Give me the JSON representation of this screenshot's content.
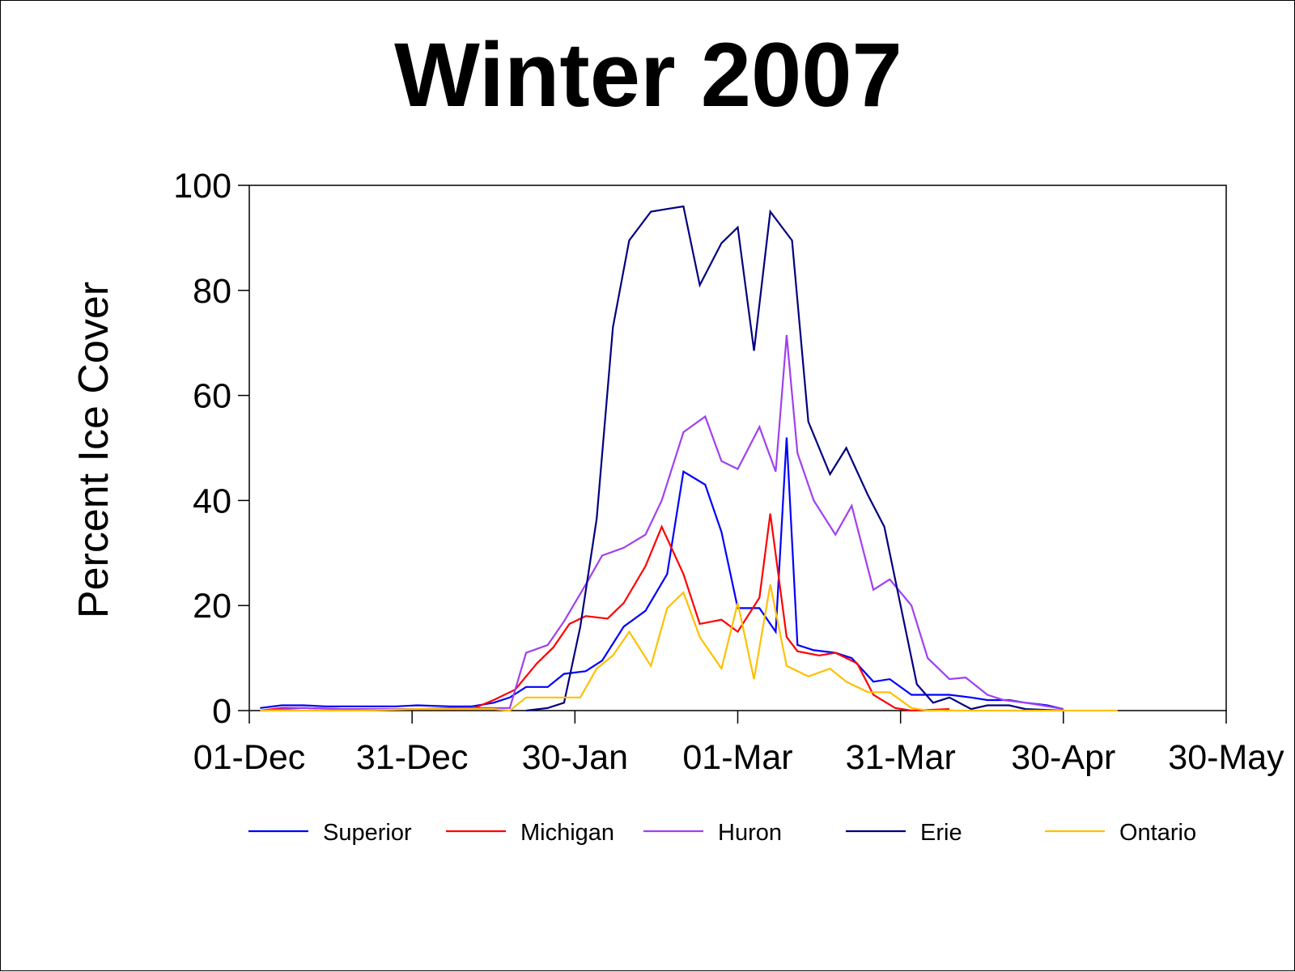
{
  "chart_data": {
    "type": "line",
    "title": "Winter 2007",
    "ylabel": "Percent Ice Cover",
    "xlabel": "",
    "x_tick_labels": [
      "01-Dec",
      "31-Dec",
      "30-Jan",
      "01-Mar",
      "31-Mar",
      "30-Apr",
      "30-May"
    ],
    "x_tick_dates": [
      "2006-12-01",
      "2006-12-31",
      "2007-01-30",
      "2007-03-01",
      "2007-03-31",
      "2007-04-30",
      "2007-05-30"
    ],
    "y_tick_labels": [
      "0",
      "20",
      "40",
      "60",
      "80",
      "100"
    ],
    "y_ticks": [
      0,
      20,
      40,
      60,
      80,
      100
    ],
    "xlim": [
      "2006-12-01",
      "2007-05-30"
    ],
    "ylim": [
      0,
      100
    ],
    "grid": false,
    "legend_position": "bottom",
    "series": [
      {
        "name": "Superior",
        "color": "#0000FF",
        "points": [
          [
            "2006-12-03",
            0.5
          ],
          [
            "2006-12-07",
            1
          ],
          [
            "2006-12-11",
            1
          ],
          [
            "2006-12-15",
            0.8
          ],
          [
            "2006-12-21",
            0.8
          ],
          [
            "2006-12-28",
            0.8
          ],
          [
            "2007-01-01",
            1
          ],
          [
            "2007-01-07",
            0.8
          ],
          [
            "2007-01-11",
            0.8
          ],
          [
            "2007-01-15",
            1.5
          ],
          [
            "2007-01-18",
            2.5
          ],
          [
            "2007-01-21",
            4.5
          ],
          [
            "2007-01-25",
            4.5
          ],
          [
            "2007-01-28",
            7
          ],
          [
            "2007-02-01",
            7.5
          ],
          [
            "2007-02-04",
            9.5
          ],
          [
            "2007-02-08",
            16
          ],
          [
            "2007-02-12",
            19
          ],
          [
            "2007-02-16",
            26
          ],
          [
            "2007-02-19",
            45.5
          ],
          [
            "2007-02-23",
            43
          ],
          [
            "2007-02-26",
            34
          ],
          [
            "2007-03-01",
            19.5
          ],
          [
            "2007-03-05",
            19.5
          ],
          [
            "2007-03-08",
            15
          ],
          [
            "2007-03-10",
            52
          ],
          [
            "2007-03-12",
            12.5
          ],
          [
            "2007-03-15",
            11.5
          ],
          [
            "2007-03-19",
            11
          ],
          [
            "2007-03-22",
            10
          ],
          [
            "2007-03-26",
            5.5
          ],
          [
            "2007-03-29",
            6
          ],
          [
            "2007-04-02",
            3
          ],
          [
            "2007-04-09",
            3
          ],
          [
            "2007-04-13",
            2.5
          ],
          [
            "2007-04-16",
            2
          ],
          [
            "2007-04-20",
            2
          ],
          [
            "2007-04-23",
            1.5
          ],
          [
            "2007-04-27",
            1
          ],
          [
            "2007-04-30",
            0.3
          ]
        ]
      },
      {
        "name": "Michigan",
        "color": "#FF0000",
        "points": [
          [
            "2006-12-03",
            0
          ],
          [
            "2006-12-07",
            0.5
          ],
          [
            "2006-12-11",
            0.5
          ],
          [
            "2006-12-18",
            0.3
          ],
          [
            "2006-12-25",
            0.3
          ],
          [
            "2007-01-01",
            0.3
          ],
          [
            "2007-01-08",
            0.3
          ],
          [
            "2007-01-11",
            0.3
          ],
          [
            "2007-01-15",
            2
          ],
          [
            "2007-01-19",
            4
          ],
          [
            "2007-01-23",
            9
          ],
          [
            "2007-01-26",
            12
          ],
          [
            "2007-01-29",
            16.5
          ],
          [
            "2007-02-01",
            18
          ],
          [
            "2007-02-05",
            17.5
          ],
          [
            "2007-02-08",
            20.5
          ],
          [
            "2007-02-12",
            27.5
          ],
          [
            "2007-02-15",
            35
          ],
          [
            "2007-02-19",
            26
          ],
          [
            "2007-02-22",
            16.5
          ],
          [
            "2007-02-26",
            17.3
          ],
          [
            "2007-03-01",
            15
          ],
          [
            "2007-03-05",
            21.5
          ],
          [
            "2007-03-07",
            37.5
          ],
          [
            "2007-03-10",
            14
          ],
          [
            "2007-03-12",
            11.3
          ],
          [
            "2007-03-16",
            10.5
          ],
          [
            "2007-03-19",
            11
          ],
          [
            "2007-03-23",
            9
          ],
          [
            "2007-03-26",
            3
          ],
          [
            "2007-03-30",
            0.5
          ],
          [
            "2007-04-02",
            0
          ],
          [
            "2007-04-09",
            0.3
          ]
        ]
      },
      {
        "name": "Huron",
        "color": "#A040F0",
        "points": [
          [
            "2006-12-03",
            0
          ],
          [
            "2006-12-11",
            0.5
          ],
          [
            "2006-12-18",
            0.3
          ],
          [
            "2006-12-25",
            0.3
          ],
          [
            "2007-01-01",
            0.3
          ],
          [
            "2007-01-08",
            0.5
          ],
          [
            "2007-01-15",
            0.5
          ],
          [
            "2007-01-18",
            0.5
          ],
          [
            "2007-01-21",
            11
          ],
          [
            "2007-01-25",
            12.5
          ],
          [
            "2007-01-28",
            17
          ],
          [
            "2007-02-01",
            24
          ],
          [
            "2007-02-04",
            29.5
          ],
          [
            "2007-02-08",
            31
          ],
          [
            "2007-02-12",
            33.5
          ],
          [
            "2007-02-15",
            40
          ],
          [
            "2007-02-19",
            53
          ],
          [
            "2007-02-23",
            56
          ],
          [
            "2007-02-26",
            47.5
          ],
          [
            "2007-03-01",
            46
          ],
          [
            "2007-03-05",
            54
          ],
          [
            "2007-03-08",
            45.5
          ],
          [
            "2007-03-10",
            71.5
          ],
          [
            "2007-03-12",
            49
          ],
          [
            "2007-03-15",
            40
          ],
          [
            "2007-03-19",
            33.5
          ],
          [
            "2007-03-22",
            39
          ],
          [
            "2007-03-26",
            23
          ],
          [
            "2007-03-29",
            25
          ],
          [
            "2007-04-02",
            20
          ],
          [
            "2007-04-05",
            10
          ],
          [
            "2007-04-09",
            6
          ],
          [
            "2007-04-12",
            6.3
          ],
          [
            "2007-04-16",
            3
          ],
          [
            "2007-04-19",
            2
          ],
          [
            "2007-04-23",
            1.5
          ],
          [
            "2007-04-26",
            1
          ],
          [
            "2007-04-30",
            0.3
          ]
        ]
      },
      {
        "name": "Erie",
        "color": "#000080",
        "points": [
          [
            "2007-01-21",
            0
          ],
          [
            "2007-01-25",
            0.5
          ],
          [
            "2007-01-28",
            1.5
          ],
          [
            "2007-01-31",
            16
          ],
          [
            "2007-02-03",
            36.5
          ],
          [
            "2007-02-06",
            73
          ],
          [
            "2007-02-09",
            89.5
          ],
          [
            "2007-02-13",
            95
          ],
          [
            "2007-02-16",
            95.5
          ],
          [
            "2007-02-19",
            96
          ],
          [
            "2007-02-22",
            81
          ],
          [
            "2007-02-26",
            89
          ],
          [
            "2007-03-01",
            92
          ],
          [
            "2007-03-04",
            68.5
          ],
          [
            "2007-03-07",
            95
          ],
          [
            "2007-03-11",
            89.5
          ],
          [
            "2007-03-14",
            55
          ],
          [
            "2007-03-18",
            45
          ],
          [
            "2007-03-21",
            50
          ],
          [
            "2007-03-25",
            41
          ],
          [
            "2007-03-28",
            35
          ],
          [
            "2007-03-31",
            20
          ],
          [
            "2007-04-03",
            5
          ],
          [
            "2007-04-06",
            1.5
          ],
          [
            "2007-04-09",
            2.5
          ],
          [
            "2007-04-13",
            0.3
          ],
          [
            "2007-04-16",
            1
          ],
          [
            "2007-04-20",
            1
          ],
          [
            "2007-04-23",
            0.3
          ],
          [
            "2007-04-30",
            0
          ]
        ]
      },
      {
        "name": "Ontario",
        "color": "#FFC000",
        "points": [
          [
            "2006-12-03",
            0
          ],
          [
            "2006-12-21",
            0
          ],
          [
            "2007-01-01",
            0.3
          ],
          [
            "2007-01-15",
            0.3
          ],
          [
            "2007-01-18",
            0
          ],
          [
            "2007-01-21",
            2.5
          ],
          [
            "2007-01-25",
            2.5
          ],
          [
            "2007-01-28",
            2.5
          ],
          [
            "2007-01-31",
            2.5
          ],
          [
            "2007-02-03",
            8
          ],
          [
            "2007-02-06",
            10.5
          ],
          [
            "2007-02-09",
            15
          ],
          [
            "2007-02-13",
            8.5
          ],
          [
            "2007-02-16",
            19.5
          ],
          [
            "2007-02-19",
            22.5
          ],
          [
            "2007-02-22",
            14
          ],
          [
            "2007-02-26",
            8
          ],
          [
            "2007-03-01",
            20.5
          ],
          [
            "2007-03-04",
            6
          ],
          [
            "2007-03-07",
            24
          ],
          [
            "2007-03-10",
            8.5
          ],
          [
            "2007-03-14",
            6.5
          ],
          [
            "2007-03-18",
            8
          ],
          [
            "2007-03-21",
            5.5
          ],
          [
            "2007-03-25",
            3.5
          ],
          [
            "2007-03-29",
            3.5
          ],
          [
            "2007-04-02",
            0.5
          ],
          [
            "2007-04-05",
            0
          ],
          [
            "2007-04-30",
            0
          ],
          [
            "2007-05-10",
            0
          ]
        ]
      }
    ]
  }
}
